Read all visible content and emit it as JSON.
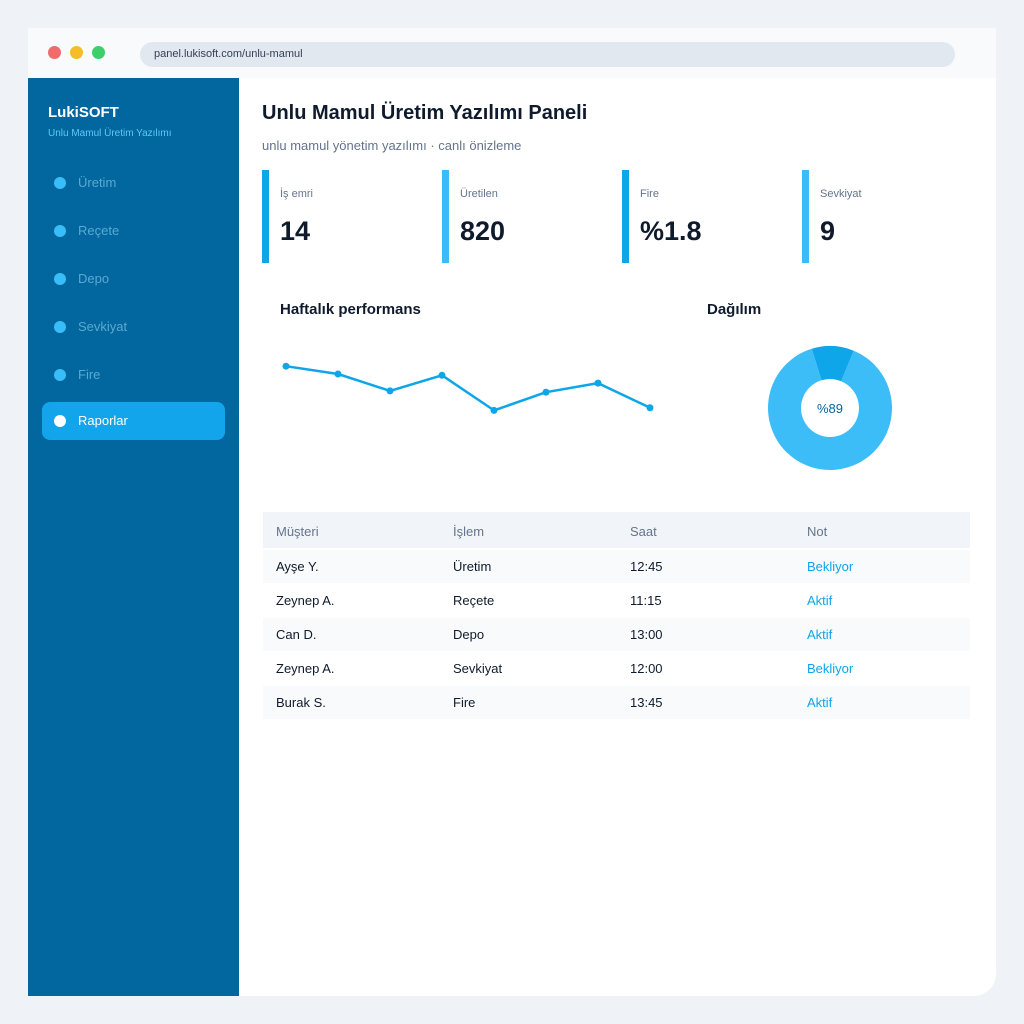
{
  "browser": {
    "url": "panel.lukisoft.com/unlu-mamul"
  },
  "sidebar": {
    "brand": "LukiSOFT",
    "brand_sub": "Unlu Mamul Üretim Yazılımı",
    "items": [
      {
        "label": "Üretim",
        "active": false
      },
      {
        "label": "Reçete",
        "active": false
      },
      {
        "label": "Depo",
        "active": false
      },
      {
        "label": "Sevkiyat",
        "active": false
      },
      {
        "label": "Fire",
        "active": false
      },
      {
        "label": "Raporlar",
        "active": true
      }
    ]
  },
  "main": {
    "title": "Unlu Mamul Üretim Yazılımı Paneli",
    "subtitle": "unlu mamul yönetim yazılımı · canlı önizleme"
  },
  "kpis": [
    {
      "label": "İş emri",
      "value": "14"
    },
    {
      "label": "Üretilen",
      "value": "820"
    },
    {
      "label": "Fire",
      "value": "%1.8"
    },
    {
      "label": "Sevkiyat",
      "value": "9"
    }
  ],
  "charts": {
    "performance_title": "Haftalık performans",
    "distribution_title": "Dağılım",
    "donut_label": "%89"
  },
  "chart_data": [
    {
      "type": "line",
      "title": "Haftalık performans",
      "x": [
        1,
        2,
        3,
        4,
        5,
        6,
        7,
        8
      ],
      "series": [
        {
          "values": [
            86,
            80,
            67,
            79,
            52,
            66,
            73,
            54
          ]
        }
      ],
      "ylim": [
        0,
        100
      ],
      "grid": false,
      "color": "#0ea5e9"
    },
    {
      "type": "pie",
      "title": "Dağılım",
      "values": [
        89,
        11
      ],
      "center_label": "%89",
      "colors": [
        "#3dbdf8",
        "#0ea5e9"
      ]
    }
  ],
  "table": {
    "columns": [
      "Müşteri",
      "İşlem",
      "Saat",
      "Not"
    ],
    "rows": [
      [
        "Ayşe Y.",
        "Üretim",
        "12:45",
        "Bekliyor"
      ],
      [
        "Zeynep A.",
        "Reçete",
        "11:15",
        "Aktif"
      ],
      [
        "Can D.",
        "Depo",
        "13:00",
        "Aktif"
      ],
      [
        "Zeynep A.",
        "Sevkiyat",
        "12:00",
        "Bekliyor"
      ],
      [
        "Burak S.",
        "Fire",
        "13:45",
        "Aktif"
      ]
    ]
  },
  "colors": {
    "sidebar_bg": "#03679f",
    "accent": "#0ea5e9",
    "accent_light": "#38bdf8",
    "nav_active": "#12a5eb"
  }
}
